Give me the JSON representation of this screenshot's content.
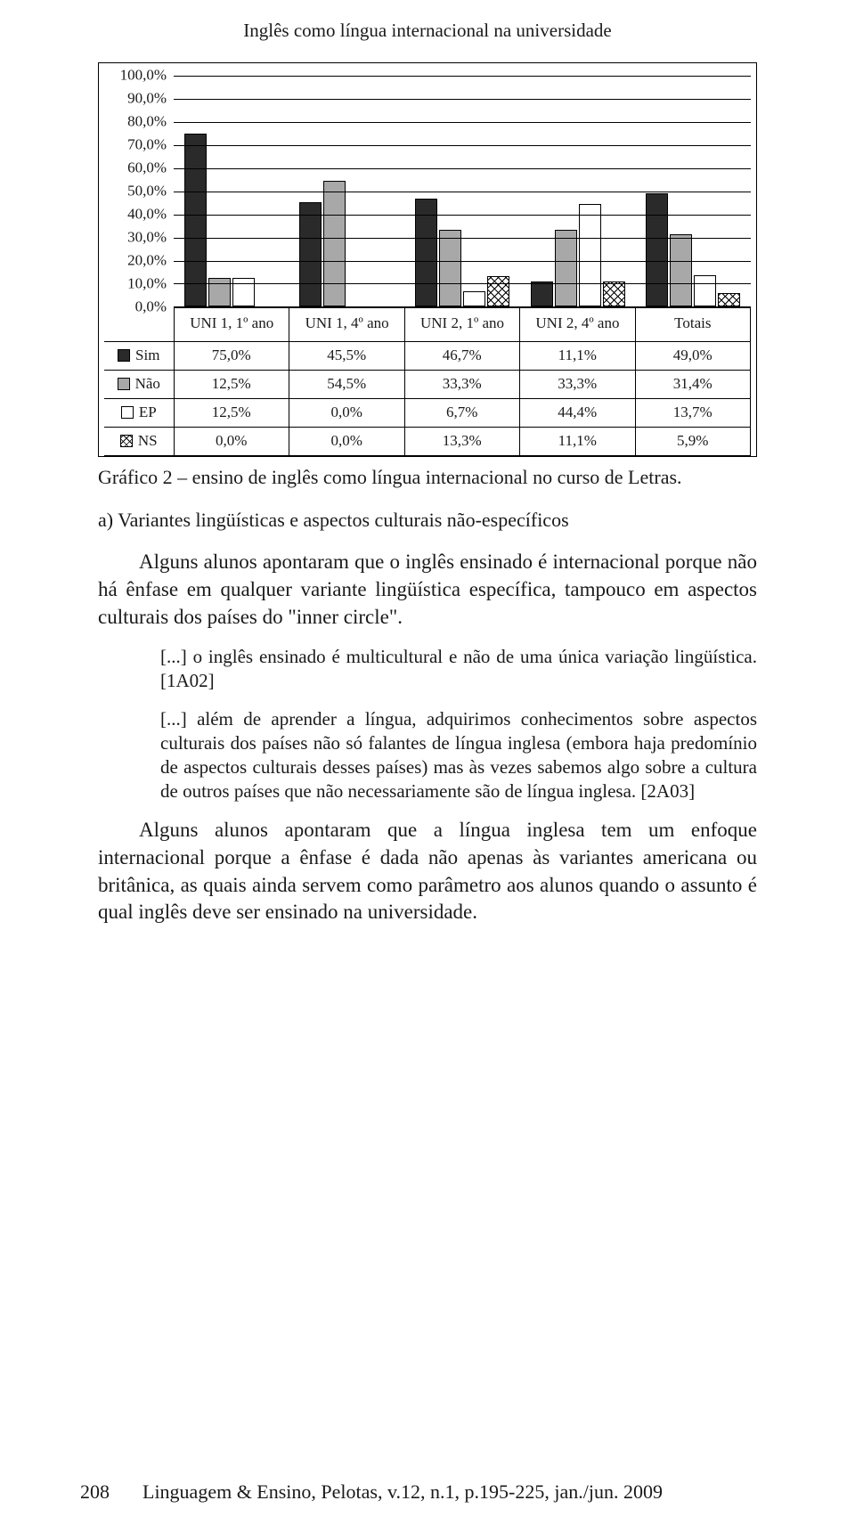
{
  "running_head": "Inglês como língua internacional na universidade",
  "chart": {
    "type": "grouped-bar",
    "ylim": [
      0,
      100
    ],
    "ytick_step": 10,
    "yticks": [
      "100,0%",
      "90,0%",
      "80,0%",
      "70,0%",
      "60,0%",
      "50,0%",
      "40,0%",
      "30,0%",
      "20,0%",
      "10,0%",
      "0,0%"
    ],
    "categories": [
      "UNI 1, 1º ano",
      "UNI 1, 4º ano",
      "UNI 2, 1º ano",
      "UNI 2, 4º ano",
      "Totais"
    ],
    "series": [
      {
        "key": "sim",
        "label": "Sim",
        "color": "#2a2a2a",
        "values_label": [
          "75,0%",
          "45,5%",
          "46,7%",
          "11,1%",
          "49,0%"
        ],
        "values": [
          75.0,
          45.5,
          46.7,
          11.1,
          49.0
        ]
      },
      {
        "key": "nao",
        "label": "Não",
        "color": "#a8a8a8",
        "values_label": [
          "12,5%",
          "54,5%",
          "33,3%",
          "33,3%",
          "31,4%"
        ],
        "values": [
          12.5,
          54.5,
          33.3,
          33.3,
          31.4
        ]
      },
      {
        "key": "ep",
        "label": "EP",
        "color": "#ffffff",
        "values_label": [
          "12,5%",
          "0,0%",
          "6,7%",
          "44,4%",
          "13,7%"
        ],
        "values": [
          12.5,
          0.0,
          6.7,
          44.4,
          13.7
        ]
      },
      {
        "key": "ns",
        "label": "NS",
        "pattern": "crosshatch",
        "values_label": [
          "0,0%",
          "0,0%",
          "13,3%",
          "11,1%",
          "5,9%"
        ],
        "values": [
          0.0,
          0.0,
          13.3,
          11.1,
          5.9
        ]
      }
    ],
    "grid_color": "#000000",
    "background_color": "#ffffff"
  },
  "caption": "Gráfico 2 – ensino de inglês como língua internacional no curso de Letras.",
  "subheading": "a) Variantes lingüísticas e aspectos culturais não-específicos",
  "para1": "Alguns alunos apontaram que o inglês ensinado é internacional porque não há ênfase em qualquer variante lingüística específica, tampouco em aspectos culturais dos países do \"inner circle\".",
  "quote1": "[...] o inglês ensinado é multicultural e não de uma única variação lingüística. [1A02]",
  "quote2": "[...] além de aprender a língua, adquirimos conhecimentos sobre aspectos culturais dos países não só falantes de língua inglesa (embora haja predomínio de aspectos culturais desses países) mas às vezes sabemos algo sobre a cultura de outros países que não necessariamente são de língua inglesa. [2A03]",
  "para2": "Alguns alunos apontaram que a língua inglesa tem um enfoque internacional porque a ênfase é dada não apenas às variantes americana ou britânica, as quais ainda servem como parâmetro aos alunos quando o assunto é qual inglês deve ser ensinado na universidade.",
  "footer": {
    "page": "208",
    "ref": "Linguagem & Ensino, Pelotas, v.12, n.1, p.195-225, jan./jun. 2009"
  }
}
